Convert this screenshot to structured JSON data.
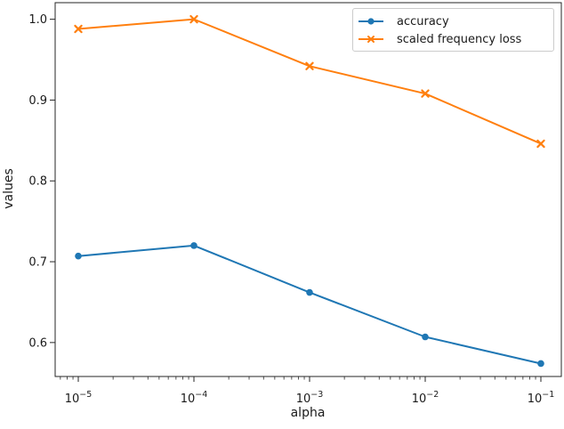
{
  "figure": {
    "background": "#ffffff",
    "text_color": "#1a1a1a",
    "spine_color": "#262626"
  },
  "legend": {
    "position": "upper right",
    "entries": [
      {
        "label": "accuracy",
        "color": "#1f77b4",
        "marker": "circle"
      },
      {
        "label": "scaled frequency loss",
        "color": "#ff7f0e",
        "marker": "x"
      }
    ]
  },
  "chart_data": {
    "type": "line",
    "title": "",
    "xlabel": "alpha",
    "ylabel": "values",
    "x_scale": "log",
    "grid": false,
    "legend_position": "upper right",
    "x": [
      1e-05,
      0.0001,
      0.001,
      0.01,
      0.1
    ],
    "x_tick_labels": [
      "10^-5",
      "10^-4",
      "10^-3",
      "10^-2",
      "10^-1"
    ],
    "y_ticks": [
      0.6,
      0.7,
      0.8,
      0.9,
      1.0
    ],
    "y_tick_labels": [
      "0.6",
      "0.7",
      "0.8",
      "0.9",
      "1.0"
    ],
    "ylim": [
      0.558,
      1.0205
    ],
    "xlim_log": [
      -5.2,
      -0.823
    ],
    "series": [
      {
        "name": "accuracy",
        "color": "#1f77b4",
        "marker": "circle",
        "values": [
          0.707,
          0.72,
          0.662,
          0.607,
          0.574
        ]
      },
      {
        "name": "scaled frequency loss",
        "color": "#ff7f0e",
        "marker": "x",
        "values": [
          0.988,
          1.0,
          0.942,
          0.908,
          0.846
        ]
      }
    ]
  }
}
